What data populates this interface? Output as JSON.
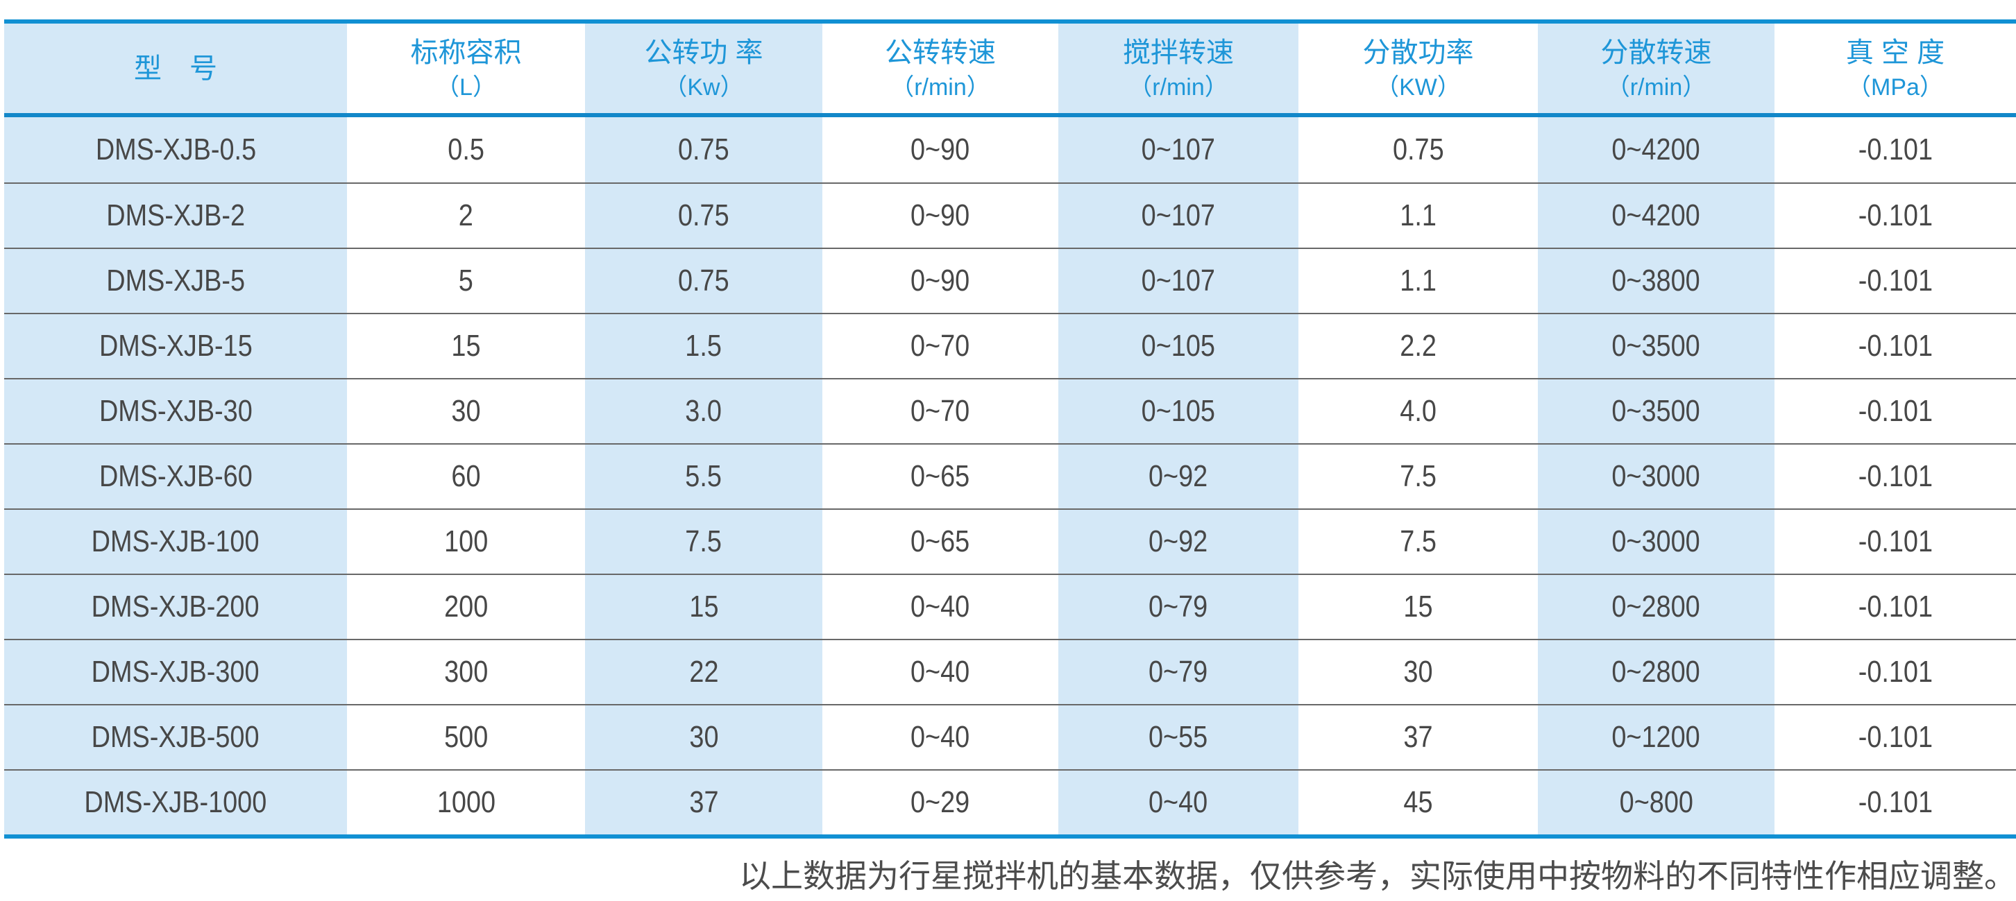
{
  "table": {
    "columns": [
      {
        "title": "型　号",
        "unit": ""
      },
      {
        "title": "标称容积",
        "unit": "（L）"
      },
      {
        "title": "公转功 率",
        "unit": "（Kw）"
      },
      {
        "title": "公转转速",
        "unit": "（r/min）"
      },
      {
        "title": "搅拌转速",
        "unit": "（r/min）"
      },
      {
        "title": "分散功率",
        "unit": "（KW）"
      },
      {
        "title": "分散转速",
        "unit": "（r/min）"
      },
      {
        "title": "真 空 度",
        "unit": "（MPa）"
      }
    ],
    "rows": [
      {
        "model": "DMS-XJB-0.5",
        "capacity_l": "0.5",
        "rev_power": "0.75",
        "rev_speed": "0~90",
        "stir_speed": "0~107",
        "disp_power": "0.75",
        "disp_speed": "0~4200",
        "vacuum": "-0.101"
      },
      {
        "model": "DMS-XJB-2",
        "capacity_l": "2",
        "rev_power": "0.75",
        "rev_speed": "0~90",
        "stir_speed": "0~107",
        "disp_power": "1.1",
        "disp_speed": "0~4200",
        "vacuum": "-0.101"
      },
      {
        "model": "DMS-XJB-5",
        "capacity_l": "5",
        "rev_power": "0.75",
        "rev_speed": "0~90",
        "stir_speed": "0~107",
        "disp_power": "1.1",
        "disp_speed": "0~3800",
        "vacuum": "-0.101"
      },
      {
        "model": "DMS-XJB-15",
        "capacity_l": "15",
        "rev_power": "1.5",
        "rev_speed": "0~70",
        "stir_speed": "0~105",
        "disp_power": "2.2",
        "disp_speed": "0~3500",
        "vacuum": "-0.101"
      },
      {
        "model": "DMS-XJB-30",
        "capacity_l": "30",
        "rev_power": "3.0",
        "rev_speed": "0~70",
        "stir_speed": "0~105",
        "disp_power": "4.0",
        "disp_speed": "0~3500",
        "vacuum": "-0.101"
      },
      {
        "model": "DMS-XJB-60",
        "capacity_l": "60",
        "rev_power": "5.5",
        "rev_speed": "0~65",
        "stir_speed": "0~92",
        "disp_power": "7.5",
        "disp_speed": "0~3000",
        "vacuum": "-0.101"
      },
      {
        "model": "DMS-XJB-100",
        "capacity_l": "100",
        "rev_power": "7.5",
        "rev_speed": "0~65",
        "stir_speed": "0~92",
        "disp_power": "7.5",
        "disp_speed": "0~3000",
        "vacuum": "-0.101"
      },
      {
        "model": "DMS-XJB-200",
        "capacity_l": "200",
        "rev_power": "15",
        "rev_speed": "0~40",
        "stir_speed": "0~79",
        "disp_power": "15",
        "disp_speed": "0~2800",
        "vacuum": "-0.101"
      },
      {
        "model": "DMS-XJB-300",
        "capacity_l": "300",
        "rev_power": "22",
        "rev_speed": "0~40",
        "stir_speed": "0~79",
        "disp_power": "30",
        "disp_speed": "0~2800",
        "vacuum": "-0.101"
      },
      {
        "model": "DMS-XJB-500",
        "capacity_l": "500",
        "rev_power": "30",
        "rev_speed": "0~40",
        "stir_speed": "0~55",
        "disp_power": "37",
        "disp_speed": "0~1200",
        "vacuum": "-0.101"
      },
      {
        "model": "DMS-XJB-1000",
        "capacity_l": "1000",
        "rev_power": "37",
        "rev_speed": "0~29",
        "stir_speed": "0~40",
        "disp_power": "45",
        "disp_speed": "0~800",
        "vacuum": "-0.101"
      }
    ]
  },
  "footer": {
    "note": "以上数据为行星搅拌机的基本数据，仅供参考，实际使用中按物料的不同特性作相应调整。"
  },
  "colors": {
    "border_blue": "#1190d3",
    "header_text_blue": "#1e96d8",
    "row_shade_blue": "#d4e8f7",
    "separator_gray": "#686868",
    "data_text": "#474747"
  }
}
